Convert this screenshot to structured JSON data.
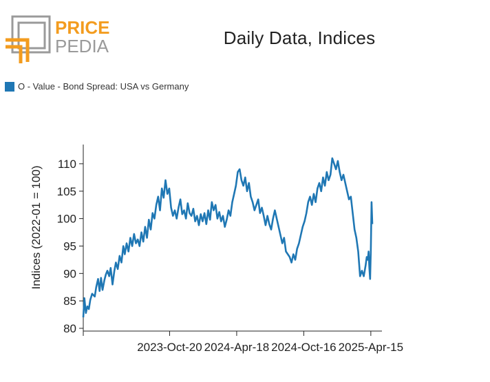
{
  "brand": {
    "name_top": "PRICE",
    "name_bottom": "PEDIA",
    "orange": "#F39C1F",
    "gray": "#9A9A9A"
  },
  "title": "Daily Data, Indices",
  "legend": {
    "label": "O - Value - Bond Spread: USA vs Germany",
    "color": "#1F77B4"
  },
  "chart_data": {
    "type": "line",
    "title": "Daily Data, Indices",
    "xlabel": "",
    "ylabel": "Indices (2022-01 = 100)",
    "ylim": [
      79.5,
      113.5
    ],
    "xlim": [
      "2023-03-01",
      "2025-05-15"
    ],
    "grid": false,
    "legend_position": "top-left",
    "x_ticks": [
      "2023-10-20",
      "2024-04-18",
      "2024-10-16",
      "2025-04-15"
    ],
    "x_tick_labels": [
      "2023-Oct-20",
      "2024-Apr-18",
      "2024-Oct-16",
      "2025-Apr-15"
    ],
    "y_ticks": [
      80,
      85,
      90,
      95,
      100,
      105,
      110
    ],
    "y_tick_labels": [
      "80",
      "85",
      "90",
      "95",
      "100",
      "105",
      "110"
    ],
    "series": [
      {
        "name": "O - Value - Bond Spread: USA vs Germany",
        "color": "#1F77B4",
        "x": [
          "2023-03-01",
          "2023-03-04",
          "2023-03-08",
          "2023-03-12",
          "2023-03-16",
          "2023-03-20",
          "2023-03-25",
          "2023-04-01",
          "2023-04-05",
          "2023-04-10",
          "2023-04-14",
          "2023-04-18",
          "2023-04-22",
          "2023-04-27",
          "2023-05-01",
          "2023-05-05",
          "2023-05-10",
          "2023-05-14",
          "2023-05-19",
          "2023-05-24",
          "2023-05-28",
          "2023-06-02",
          "2023-06-07",
          "2023-06-12",
          "2023-06-17",
          "2023-06-21",
          "2023-06-26",
          "2023-07-01",
          "2023-07-06",
          "2023-07-11",
          "2023-07-16",
          "2023-07-21",
          "2023-07-26",
          "2023-07-31",
          "2023-08-05",
          "2023-08-10",
          "2023-08-15",
          "2023-08-20",
          "2023-08-25",
          "2023-08-30",
          "2023-09-04",
          "2023-09-09",
          "2023-09-14",
          "2023-09-19",
          "2023-09-24",
          "2023-09-29",
          "2023-10-04",
          "2023-10-09",
          "2023-10-14",
          "2023-10-19",
          "2023-10-24",
          "2023-10-29",
          "2023-11-03",
          "2023-11-08",
          "2023-11-13",
          "2023-11-18",
          "2023-11-23",
          "2023-11-28",
          "2023-12-03",
          "2023-12-08",
          "2023-12-13",
          "2023-12-18",
          "2023-12-23",
          "2023-12-28",
          "2024-01-02",
          "2024-01-07",
          "2024-01-12",
          "2024-01-17",
          "2024-01-22",
          "2024-01-27",
          "2024-02-01",
          "2024-02-06",
          "2024-02-11",
          "2024-02-16",
          "2024-02-21",
          "2024-02-26",
          "2024-03-02",
          "2024-03-07",
          "2024-03-12",
          "2024-03-17",
          "2024-03-22",
          "2024-03-27",
          "2024-04-01",
          "2024-04-06",
          "2024-04-11",
          "2024-04-16",
          "2024-04-21",
          "2024-04-26",
          "2024-05-01",
          "2024-05-06",
          "2024-05-11",
          "2024-05-16",
          "2024-05-21",
          "2024-05-26",
          "2024-05-31",
          "2024-06-05",
          "2024-06-10",
          "2024-06-15",
          "2024-06-20",
          "2024-06-25",
          "2024-06-30",
          "2024-07-05",
          "2024-07-10",
          "2024-07-15",
          "2024-07-20",
          "2024-07-25",
          "2024-07-30",
          "2024-08-04",
          "2024-08-09",
          "2024-08-14",
          "2024-08-19",
          "2024-08-24",
          "2024-08-29",
          "2024-09-03",
          "2024-09-08",
          "2024-09-13",
          "2024-09-18",
          "2024-09-23",
          "2024-09-28",
          "2024-10-03",
          "2024-10-08",
          "2024-10-13",
          "2024-10-18",
          "2024-10-23",
          "2024-10-28",
          "2024-11-02",
          "2024-11-07",
          "2024-11-12",
          "2024-11-17",
          "2024-11-22",
          "2024-11-27",
          "2024-12-02",
          "2024-12-07",
          "2024-12-12",
          "2024-12-17",
          "2024-12-22",
          "2024-12-27",
          "2025-01-01",
          "2025-01-06",
          "2025-01-11",
          "2025-01-16",
          "2025-01-21",
          "2025-01-26",
          "2025-01-31",
          "2025-02-05",
          "2025-02-10",
          "2025-02-15",
          "2025-02-20",
          "2025-02-25",
          "2025-03-02",
          "2025-03-07",
          "2025-03-12",
          "2025-03-17",
          "2025-03-22",
          "2025-03-27",
          "2025-04-01",
          "2025-04-04",
          "2025-04-07",
          "2025-04-09",
          "2025-04-11",
          "2025-04-13",
          "2025-04-15",
          "2025-04-17",
          "2025-04-19"
        ],
        "y": [
          82.0,
          85.5,
          82.8,
          84.0,
          83.5,
          85.2,
          86.3,
          85.8,
          87.5,
          89.0,
          86.8,
          89.2,
          87.0,
          88.8,
          89.8,
          90.5,
          89.5,
          91.0,
          88.0,
          90.5,
          92.0,
          90.8,
          93.2,
          92.0,
          95.0,
          93.5,
          95.5,
          94.0,
          96.5,
          95.0,
          97.2,
          95.5,
          96.2,
          95.0,
          97.5,
          95.8,
          98.5,
          96.5,
          99.8,
          98.0,
          101.0,
          100.0,
          102.5,
          104.0,
          101.5,
          105.5,
          103.8,
          107.0,
          104.5,
          105.5,
          102.0,
          100.5,
          101.5,
          100.0,
          102.0,
          103.5,
          100.8,
          101.5,
          100.0,
          102.8,
          101.0,
          100.5,
          101.8,
          99.5,
          100.5,
          98.8,
          100.8,
          99.5,
          101.0,
          99.0,
          101.5,
          99.8,
          103.0,
          101.5,
          102.5,
          100.0,
          101.2,
          99.5,
          100.5,
          98.5,
          99.8,
          101.5,
          100.5,
          103.0,
          104.5,
          106.0,
          108.5,
          109.0,
          107.0,
          106.0,
          107.5,
          105.0,
          106.5,
          104.0,
          103.0,
          101.5,
          102.5,
          103.5,
          101.0,
          102.0,
          100.5,
          98.8,
          100.5,
          99.0,
          98.0,
          100.0,
          101.5,
          100.0,
          98.5,
          97.0,
          95.5,
          96.5,
          94.0,
          93.5,
          93.0,
          92.0,
          93.5,
          92.5,
          94.5,
          95.5,
          97.0,
          98.5,
          99.5,
          101.0,
          103.0,
          104.0,
          102.5,
          104.5,
          103.0,
          105.5,
          106.5,
          105.0,
          107.5,
          106.0,
          108.5,
          107.0,
          108.0,
          111.0,
          110.0,
          109.0,
          110.5,
          108.5,
          107.0,
          108.0,
          106.5,
          105.0,
          103.5,
          104.0,
          101.0,
          98.0,
          96.5,
          94.0,
          89.5,
          90.5,
          89.5,
          91.5,
          93.0,
          92.5,
          94.0,
          91.0,
          89.0,
          94.0,
          103.0,
          99.0
        ]
      }
    ]
  }
}
